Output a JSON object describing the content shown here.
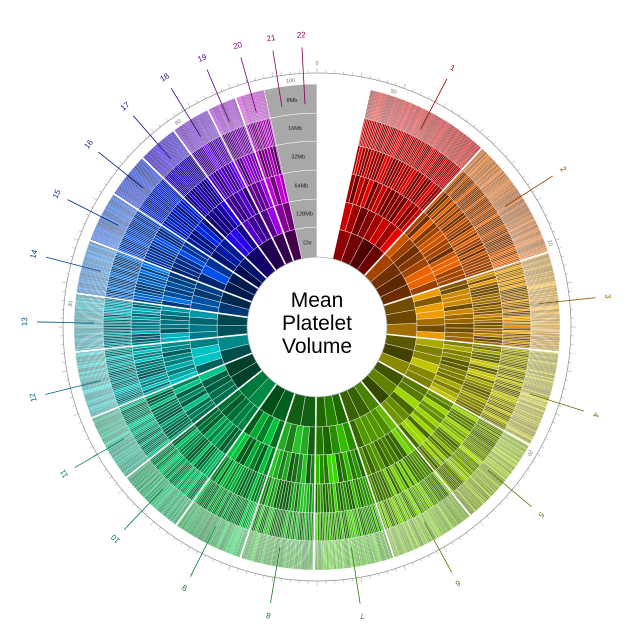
{
  "title": {
    "lines": [
      "Mean",
      "Platelet",
      "Volume"
    ]
  },
  "scale_labels": [
    "8Mb",
    "16Mb",
    "32Mb",
    "64Mb",
    "128Mb",
    "Chr"
  ],
  "top_tick": "0",
  "chromosomes": [
    {
      "name": "1",
      "size": 249,
      "color": "#cc0000",
      "label_color": "#8b0000"
    },
    {
      "name": "2",
      "size": 243,
      "color": "#cc5500",
      "label_color": "#8b3a00"
    },
    {
      "name": "3",
      "size": 198,
      "color": "#cc8800",
      "label_color": "#8b5a00"
    },
    {
      "name": "4",
      "size": 191,
      "color": "#aaaa00",
      "label_color": "#7a6a00"
    },
    {
      "name": "5",
      "size": 181,
      "color": "#88bb00",
      "label_color": "#5a7a00"
    },
    {
      "name": "6",
      "size": 171,
      "color": "#66bb00",
      "label_color": "#4a7a00"
    },
    {
      "name": "7",
      "size": 159,
      "color": "#33bb00",
      "label_color": "#2a7a00"
    },
    {
      "name": "8",
      "size": 146,
      "color": "#22aa22",
      "label_color": "#1a7a1a"
    },
    {
      "name": "9",
      "size": 141,
      "color": "#00aa33",
      "label_color": "#007a2a"
    },
    {
      "name": "10",
      "size": 135,
      "color": "#00aa55",
      "label_color": "#007a44"
    },
    {
      "name": "11",
      "size": 135,
      "color": "#00aa77",
      "label_color": "#007a55"
    },
    {
      "name": "12",
      "size": 133,
      "color": "#00aaaa",
      "label_color": "#006a7a"
    },
    {
      "name": "13",
      "size": 115,
      "color": "#0099aa",
      "label_color": "#005a7a"
    },
    {
      "name": "14",
      "size": 107,
      "color": "#0066cc",
      "label_color": "#003a8b"
    },
    {
      "name": "15",
      "size": 102,
      "color": "#0044cc",
      "label_color": "#002a8b"
    },
    {
      "name": "16",
      "size": 90,
      "color": "#0022cc",
      "label_color": "#001a8b"
    },
    {
      "name": "17",
      "size": 81,
      "color": "#2200cc",
      "label_color": "#1a008b"
    },
    {
      "name": "18",
      "size": 78,
      "color": "#5500cc",
      "label_color": "#3a008b"
    },
    {
      "name": "19",
      "size": 59,
      "color": "#8800cc",
      "label_color": "#5a008b"
    },
    {
      "name": "20",
      "size": 63,
      "color": "#aa00bb",
      "label_color": "#7a007a"
    },
    {
      "name": "21",
      "size": 48,
      "color": "#cc00aa",
      "label_color": "#8b006a"
    },
    {
      "name": "22",
      "size": 51,
      "color": "#cc0077",
      "label_color": "#8b0055"
    }
  ],
  "ring_ticks": [
    {
      "label": "50",
      "fraction": 0.05
    },
    {
      "label": "20",
      "fraction": 0.195
    },
    {
      "label": "20",
      "fraction": 0.335
    },
    {
      "label": "30",
      "fraction": 0.765
    },
    {
      "label": "90",
      "fraction": 0.905
    },
    {
      "label": "100",
      "fraction": 0.983
    }
  ],
  "colors": {
    "background": "#ffffff",
    "gap": "#ffffff",
    "scale_wedge": "#a8a8a8",
    "outer_ring": "#999999"
  }
}
